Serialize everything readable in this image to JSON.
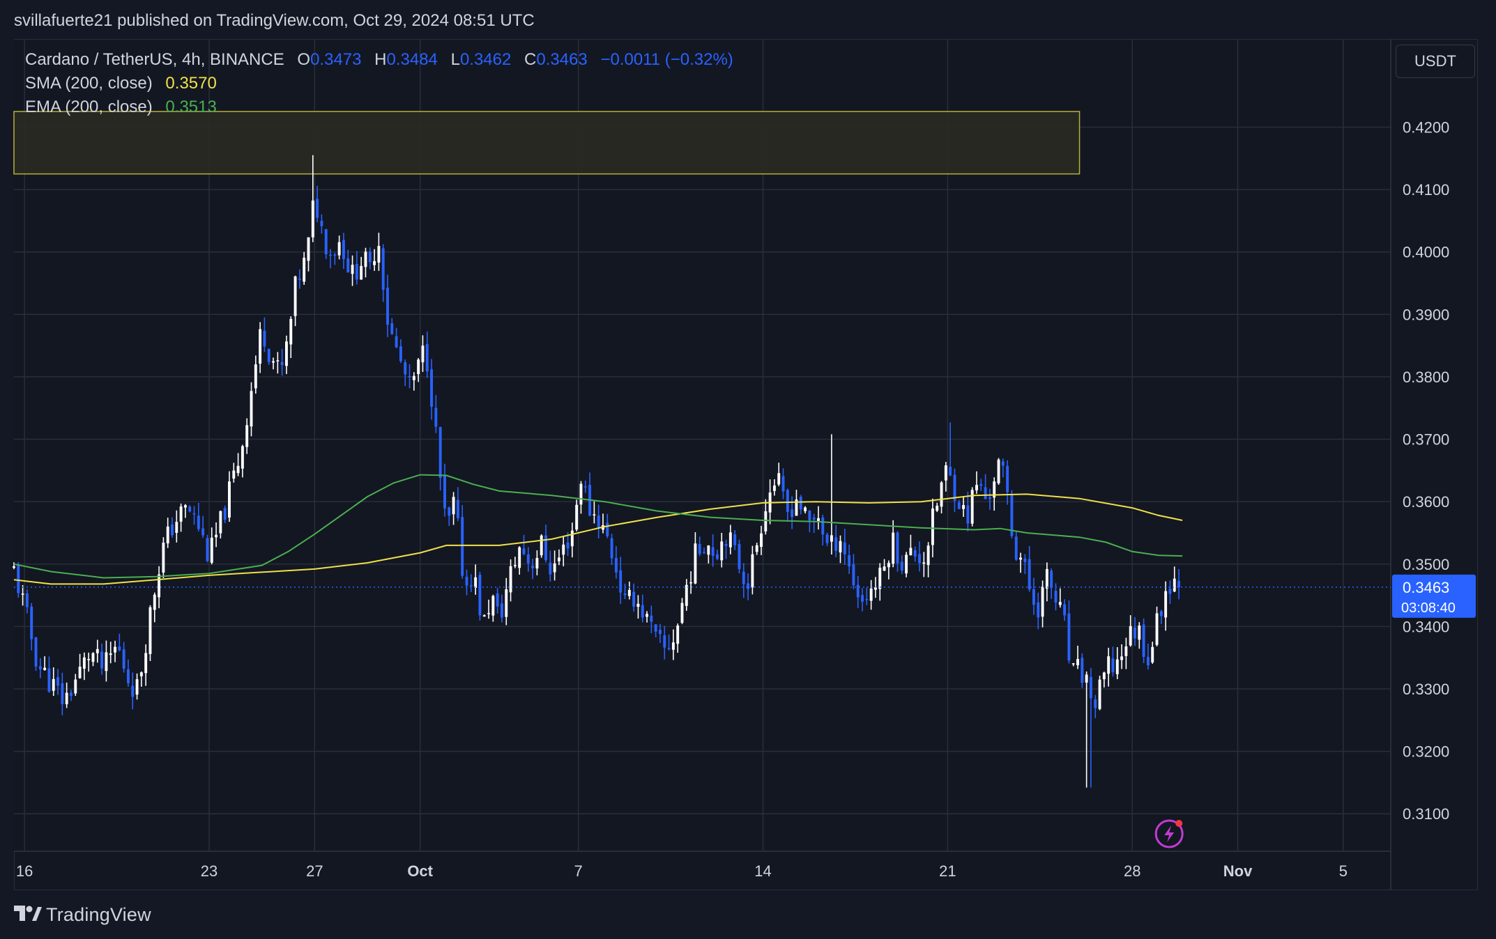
{
  "header": {
    "publisher_line": "svillafuerte21 published on TradingView.com, Oct 29, 2024 08:51 UTC"
  },
  "legend": {
    "symbol": "Cardano / TetherUS, 4h, BINANCE",
    "open_label": "O",
    "open": "0.3473",
    "high_label": "H",
    "high": "0.3484",
    "low_label": "L",
    "low": "0.3462",
    "close_label": "C",
    "close": "0.3463",
    "change": "−0.0011 (−0.32%)",
    "sma_label": "SMA (200, close)",
    "sma_value": "0.3570",
    "ema_label": "EMA (200, close)",
    "ema_value": "0.3513"
  },
  "currency": "USDT",
  "price_tag": {
    "price": "0.3463",
    "countdown": "03:08:40"
  },
  "footer": {
    "brand": "TradingView"
  },
  "colors": {
    "background": "#131722",
    "grid": "#2a2e39",
    "up_candle": "#ffffff",
    "down_candle": "#2962ff",
    "sma": "#f0e14a",
    "ema": "#4caf50",
    "zone_border": "#b8b03a",
    "zone_fill": "#2a2a22",
    "accent": "#2962ff"
  },
  "chart_data": {
    "type": "candlestick",
    "symbol": "Cardano / TetherUS",
    "interval": "4h",
    "exchange": "BINANCE",
    "ylim": [
      0.304,
      0.434
    ],
    "y_ticks": [
      "0.4200",
      "0.4100",
      "0.4000",
      "0.3900",
      "0.3800",
      "0.3700",
      "0.3600",
      "0.3500",
      "0.3400",
      "0.3300",
      "0.3200",
      "0.3100"
    ],
    "x_ticks": [
      {
        "day": 16,
        "label": "16"
      },
      {
        "day": 23,
        "label": "23"
      },
      {
        "day": 27,
        "label": "27"
      },
      {
        "day": 31,
        "label": "Oct"
      },
      {
        "day": 37,
        "label": "7"
      },
      {
        "day": 44,
        "label": "14"
      },
      {
        "day": 51,
        "label": "21"
      },
      {
        "day": 58,
        "label": "28"
      },
      {
        "day": 62,
        "label": "Nov"
      },
      {
        "day": 66,
        "label": "5"
      }
    ],
    "x_unit": "day count from Sep 1 2024 (day 31 = Oct 1)",
    "x_range": [
      15.6,
      67.8
    ],
    "resistance_zone": {
      "x_start": 15.6,
      "x_end": 56.0,
      "low": 0.4125,
      "high": 0.4225
    },
    "last_price": 0.3463,
    "price_path": [
      [
        15.6,
        0.349
      ],
      [
        16.0,
        0.343
      ],
      [
        16.5,
        0.334
      ],
      [
        17.0,
        0.331
      ],
      [
        17.5,
        0.328
      ],
      [
        18.0,
        0.332
      ],
      [
        18.5,
        0.336
      ],
      [
        19.0,
        0.333
      ],
      [
        19.5,
        0.337
      ],
      [
        20.0,
        0.331
      ],
      [
        20.3,
        0.33
      ],
      [
        20.8,
        0.343
      ],
      [
        21.2,
        0.352
      ],
      [
        21.7,
        0.357
      ],
      [
        22.2,
        0.359
      ],
      [
        22.6,
        0.356
      ],
      [
        23.0,
        0.351
      ],
      [
        23.4,
        0.356
      ],
      [
        23.8,
        0.362
      ],
      [
        24.2,
        0.368
      ],
      [
        24.6,
        0.378
      ],
      [
        25.0,
        0.388
      ],
      [
        25.3,
        0.384
      ],
      [
        25.7,
        0.38
      ],
      [
        26.0,
        0.386
      ],
      [
        26.3,
        0.395
      ],
      [
        26.7,
        0.399
      ],
      [
        27.0,
        0.409
      ],
      [
        27.3,
        0.403
      ],
      [
        27.6,
        0.4
      ],
      [
        28.0,
        0.402
      ],
      [
        28.4,
        0.396
      ],
      [
        28.8,
        0.399
      ],
      [
        29.1,
        0.397
      ],
      [
        29.4,
        0.403
      ],
      [
        29.8,
        0.388
      ],
      [
        30.2,
        0.383
      ],
      [
        30.6,
        0.378
      ],
      [
        30.9,
        0.381
      ],
      [
        31.2,
        0.385
      ],
      [
        31.5,
        0.375
      ],
      [
        31.7,
        0.366
      ],
      [
        32.0,
        0.355
      ],
      [
        32.3,
        0.36
      ],
      [
        32.7,
        0.346
      ],
      [
        33.0,
        0.349
      ],
      [
        33.4,
        0.34
      ],
      [
        33.7,
        0.345
      ],
      [
        34.0,
        0.341
      ],
      [
        34.4,
        0.348
      ],
      [
        34.8,
        0.353
      ],
      [
        35.2,
        0.35
      ],
      [
        35.6,
        0.353
      ],
      [
        36.0,
        0.349
      ],
      [
        36.4,
        0.352
      ],
      [
        36.8,
        0.356
      ],
      [
        37.1,
        0.364
      ],
      [
        37.4,
        0.359
      ],
      [
        37.8,
        0.357
      ],
      [
        38.1,
        0.354
      ],
      [
        38.4,
        0.35
      ],
      [
        38.8,
        0.343
      ],
      [
        39.1,
        0.345
      ],
      [
        39.5,
        0.342
      ],
      [
        39.9,
        0.338
      ],
      [
        40.3,
        0.336
      ],
      [
        40.7,
        0.339
      ],
      [
        41.0,
        0.345
      ],
      [
        41.4,
        0.351
      ],
      [
        41.8,
        0.354
      ],
      [
        42.2,
        0.352
      ],
      [
        42.6,
        0.355
      ],
      [
        43.0,
        0.351
      ],
      [
        43.4,
        0.347
      ],
      [
        43.7,
        0.352
      ],
      [
        44.1,
        0.36
      ],
      [
        44.5,
        0.364
      ],
      [
        44.9,
        0.358
      ],
      [
        45.3,
        0.361
      ],
      [
        45.7,
        0.356
      ],
      [
        46.1,
        0.358
      ],
      [
        46.5,
        0.352
      ],
      [
        46.9,
        0.355
      ],
      [
        47.3,
        0.349
      ],
      [
        47.7,
        0.344
      ],
      [
        48.1,
        0.346
      ],
      [
        48.5,
        0.348
      ],
      [
        48.9,
        0.354
      ],
      [
        49.3,
        0.35
      ],
      [
        49.7,
        0.352
      ],
      [
        50.1,
        0.351
      ],
      [
        50.5,
        0.358
      ],
      [
        50.9,
        0.365
      ],
      [
        51.3,
        0.362
      ],
      [
        51.7,
        0.357
      ],
      [
        52.1,
        0.363
      ],
      [
        52.5,
        0.36
      ],
      [
        52.9,
        0.366
      ],
      [
        53.2,
        0.363
      ],
      [
        53.5,
        0.353
      ],
      [
        53.8,
        0.351
      ],
      [
        54.1,
        0.346
      ],
      [
        54.4,
        0.343
      ],
      [
        54.8,
        0.348
      ],
      [
        55.1,
        0.344
      ],
      [
        55.4,
        0.341
      ],
      [
        55.7,
        0.332
      ],
      [
        56.0,
        0.333
      ],
      [
        56.3,
        0.331
      ],
      [
        56.6,
        0.327
      ],
      [
        57.0,
        0.333
      ],
      [
        57.4,
        0.334
      ],
      [
        57.8,
        0.338
      ],
      [
        58.2,
        0.34
      ],
      [
        58.6,
        0.335
      ],
      [
        58.9,
        0.34
      ],
      [
        59.2,
        0.345
      ],
      [
        59.5,
        0.348
      ],
      [
        59.9,
        0.3463
      ]
    ],
    "series": [
      {
        "name": "SMA (200, close)",
        "last_value": 0.357,
        "points": [
          [
            15.6,
            0.3475
          ],
          [
            17,
            0.3468
          ],
          [
            19,
            0.3468
          ],
          [
            21,
            0.3475
          ],
          [
            23,
            0.3482
          ],
          [
            25,
            0.3487
          ],
          [
            27,
            0.3492
          ],
          [
            29,
            0.3502
          ],
          [
            31,
            0.3518
          ],
          [
            32,
            0.353
          ],
          [
            34,
            0.353
          ],
          [
            36,
            0.354
          ],
          [
            38,
            0.356
          ],
          [
            40,
            0.3575
          ],
          [
            42,
            0.3588
          ],
          [
            44,
            0.3598
          ],
          [
            46,
            0.36
          ],
          [
            48,
            0.3598
          ],
          [
            50,
            0.36
          ],
          [
            52,
            0.361
          ],
          [
            54,
            0.3612
          ],
          [
            56,
            0.3605
          ],
          [
            58,
            0.359
          ],
          [
            59,
            0.3578
          ],
          [
            59.9,
            0.357
          ]
        ]
      },
      {
        "name": "EMA (200, close)",
        "last_value": 0.3513,
        "points": [
          [
            15.6,
            0.35
          ],
          [
            17,
            0.3488
          ],
          [
            19,
            0.3478
          ],
          [
            21,
            0.348
          ],
          [
            23,
            0.3485
          ],
          [
            25,
            0.3498
          ],
          [
            26,
            0.352
          ],
          [
            27,
            0.3548
          ],
          [
            28,
            0.3578
          ],
          [
            29,
            0.3608
          ],
          [
            30,
            0.363
          ],
          [
            31,
            0.3643
          ],
          [
            32,
            0.3642
          ],
          [
            33,
            0.3628
          ],
          [
            34,
            0.3617
          ],
          [
            36,
            0.361
          ],
          [
            38,
            0.36
          ],
          [
            40,
            0.3585
          ],
          [
            42,
            0.3575
          ],
          [
            44,
            0.357
          ],
          [
            46,
            0.3568
          ],
          [
            48,
            0.3563
          ],
          [
            50,
            0.3558
          ],
          [
            52,
            0.3555
          ],
          [
            53,
            0.3557
          ],
          [
            54,
            0.355
          ],
          [
            56,
            0.3543
          ],
          [
            57,
            0.3535
          ],
          [
            58,
            0.352
          ],
          [
            59,
            0.3514
          ],
          [
            59.9,
            0.3513
          ]
        ]
      }
    ]
  }
}
